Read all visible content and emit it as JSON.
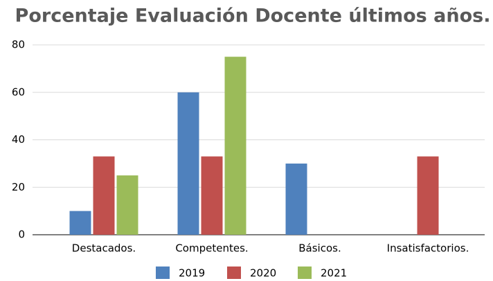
{
  "chart_data": {
    "type": "bar",
    "title": "Porcentaje Evaluación Docente últimos años.",
    "categories": [
      "Destacados.",
      "Competentes.",
      "Básicos.",
      "Insatisfactorios."
    ],
    "series": [
      {
        "name": "2019",
        "color": "#4f81bd",
        "values": [
          10,
          60,
          30,
          0
        ]
      },
      {
        "name": "2020",
        "color": "#c0504d",
        "values": [
          33,
          33,
          0,
          33
        ]
      },
      {
        "name": "2021",
        "color": "#9bbb59",
        "values": [
          25,
          75,
          0,
          0
        ]
      }
    ],
    "ylim": [
      0,
      80
    ],
    "yticks": [
      0,
      20,
      40,
      60,
      80
    ],
    "grid": true,
    "legend": "bottom"
  }
}
